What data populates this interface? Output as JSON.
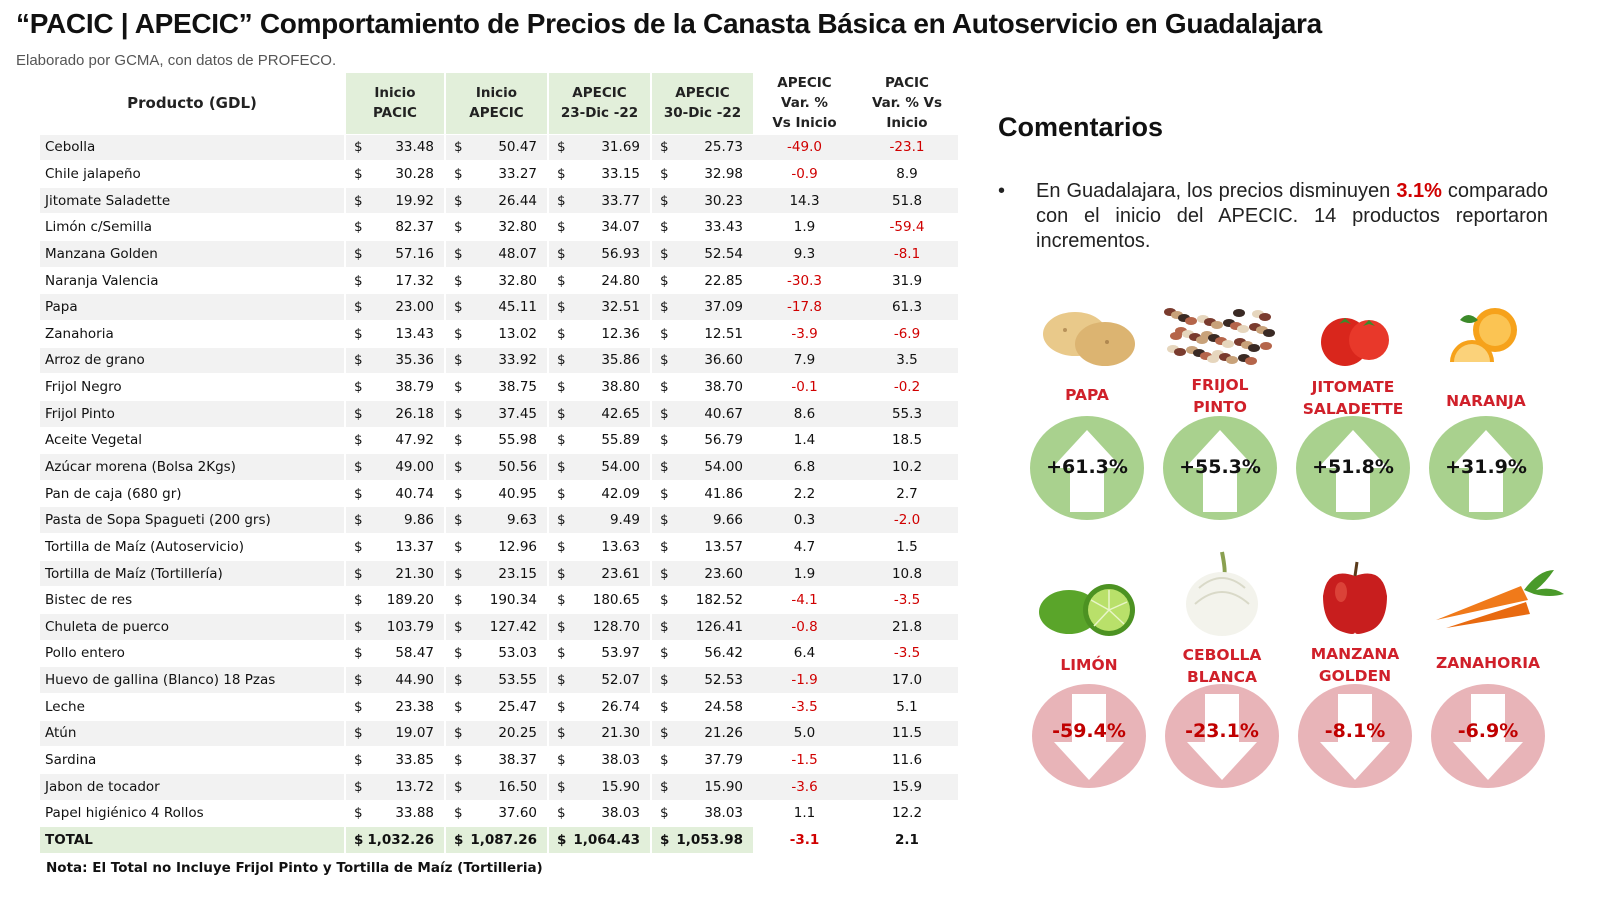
{
  "header": {
    "title": "“PACIC | APECIC” Comportamiento de Precios de la Canasta Básica en Autoservicio en Guadalajara",
    "subtitle": "Elaborado por GCMA, con datos de PROFECO."
  },
  "table": {
    "columns": {
      "product": "Producto (GDL)",
      "inicio_pacic": [
        "Inicio",
        "PACIC"
      ],
      "inicio_apecic": [
        "Inicio",
        "APECIC"
      ],
      "apecic_23": [
        "APECIC",
        "23-Dic -22"
      ],
      "apecic_30": [
        "APECIC",
        "30-Dic -22"
      ],
      "apecic_var": [
        "APECIC",
        "Var. %",
        "Vs  Inicio"
      ],
      "pacic_var": [
        "PACIC",
        "Var. % Vs",
        "Inicio"
      ]
    },
    "rows": [
      {
        "name": "Cebolla",
        "pacic": "33.48",
        "apecic": "50.47",
        "d23": "31.69",
        "d30": "25.73",
        "var_apecic": "-49.0",
        "var_pacic": "-23.1"
      },
      {
        "name": "Chile jalapeño",
        "pacic": "30.28",
        "apecic": "33.27",
        "d23": "33.15",
        "d30": "32.98",
        "var_apecic": "-0.9",
        "var_pacic": "8.9"
      },
      {
        "name": "Jitomate Saladette",
        "pacic": "19.92",
        "apecic": "26.44",
        "d23": "33.77",
        "d30": "30.23",
        "var_apecic": "14.3",
        "var_pacic": "51.8"
      },
      {
        "name": "Limón c/Semilla",
        "pacic": "82.37",
        "apecic": "32.80",
        "d23": "34.07",
        "d30": "33.43",
        "var_apecic": "1.9",
        "var_pacic": "-59.4"
      },
      {
        "name": "Manzana Golden",
        "pacic": "57.16",
        "apecic": "48.07",
        "d23": "56.93",
        "d30": "52.54",
        "var_apecic": "9.3",
        "var_pacic": "-8.1"
      },
      {
        "name": "Naranja Valencia",
        "pacic": "17.32",
        "apecic": "32.80",
        "d23": "24.80",
        "d30": "22.85",
        "var_apecic": "-30.3",
        "var_pacic": "31.9"
      },
      {
        "name": "Papa",
        "pacic": "23.00",
        "apecic": "45.11",
        "d23": "32.51",
        "d30": "37.09",
        "var_apecic": "-17.8",
        "var_pacic": "61.3"
      },
      {
        "name": "Zanahoria",
        "pacic": "13.43",
        "apecic": "13.02",
        "d23": "12.36",
        "d30": "12.51",
        "var_apecic": "-3.9",
        "var_pacic": "-6.9"
      },
      {
        "name": "Arroz de grano",
        "pacic": "35.36",
        "apecic": "33.92",
        "d23": "35.86",
        "d30": "36.60",
        "var_apecic": "7.9",
        "var_pacic": "3.5"
      },
      {
        "name": "Frijol Negro",
        "pacic": "38.79",
        "apecic": "38.75",
        "d23": "38.80",
        "d30": "38.70",
        "var_apecic": "-0.1",
        "var_pacic": "-0.2"
      },
      {
        "name": "Frijol Pinto",
        "pacic": "26.18",
        "apecic": "37.45",
        "d23": "42.65",
        "d30": "40.67",
        "var_apecic": "8.6",
        "var_pacic": "55.3"
      },
      {
        "name": "Aceite Vegetal",
        "pacic": "47.92",
        "apecic": "55.98",
        "d23": "55.89",
        "d30": "56.79",
        "var_apecic": "1.4",
        "var_pacic": "18.5"
      },
      {
        "name": "Azúcar morena (Bolsa 2Kgs)",
        "pacic": "49.00",
        "apecic": "50.56",
        "d23": "54.00",
        "d30": "54.00",
        "var_apecic": "6.8",
        "var_pacic": "10.2"
      },
      {
        "name": "Pan de caja (680 gr)",
        "pacic": "40.74",
        "apecic": "40.95",
        "d23": "42.09",
        "d30": "41.86",
        "var_apecic": "2.2",
        "var_pacic": "2.7"
      },
      {
        "name": "Pasta de Sopa Spagueti (200 grs)",
        "pacic": "9.86",
        "apecic": "9.63",
        "d23": "9.49",
        "d30": "9.66",
        "var_apecic": "0.3",
        "var_pacic": "-2.0"
      },
      {
        "name": "Tortilla de Maíz (Autoservicio)",
        "pacic": "13.37",
        "apecic": "12.96",
        "d23": "13.63",
        "d30": "13.57",
        "var_apecic": "4.7",
        "var_pacic": "1.5"
      },
      {
        "name": "Tortilla de Maíz (Tortillería)",
        "pacic": "21.30",
        "apecic": "23.15",
        "d23": "23.61",
        "d30": "23.60",
        "var_apecic": "1.9",
        "var_pacic": "10.8"
      },
      {
        "name": "Bistec de res",
        "pacic": "189.20",
        "apecic": "190.34",
        "d23": "180.65",
        "d30": "182.52",
        "var_apecic": "-4.1",
        "var_pacic": "-3.5"
      },
      {
        "name": "Chuleta de puerco",
        "pacic": "103.79",
        "apecic": "127.42",
        "d23": "128.70",
        "d30": "126.41",
        "var_apecic": "-0.8",
        "var_pacic": "21.8"
      },
      {
        "name": "Pollo entero",
        "pacic": "58.47",
        "apecic": "53.03",
        "d23": "53.97",
        "d30": "56.42",
        "var_apecic": "6.4",
        "var_pacic": "-3.5"
      },
      {
        "name": "Huevo de gallina (Blanco) 18 Pzas",
        "pacic": "44.90",
        "apecic": "53.55",
        "d23": "52.07",
        "d30": "52.53",
        "var_apecic": "-1.9",
        "var_pacic": "17.0"
      },
      {
        "name": "Leche",
        "pacic": "23.38",
        "apecic": "25.47",
        "d23": "26.74",
        "d30": "24.58",
        "var_apecic": "-3.5",
        "var_pacic": "5.1"
      },
      {
        "name": "Atún",
        "pacic": "19.07",
        "apecic": "20.25",
        "d23": "21.30",
        "d30": "21.26",
        "var_apecic": "5.0",
        "var_pacic": "11.5"
      },
      {
        "name": "Sardina",
        "pacic": "33.85",
        "apecic": "38.37",
        "d23": "38.03",
        "d30": "37.79",
        "var_apecic": "-1.5",
        "var_pacic": "11.6"
      },
      {
        "name": "Jabon de tocador",
        "pacic": "13.72",
        "apecic": "16.50",
        "d23": "15.90",
        "d30": "15.90",
        "var_apecic": "-3.6",
        "var_pacic": "15.9"
      },
      {
        "name": "Papel higiénico 4 Rollos",
        "pacic": "33.88",
        "apecic": "37.60",
        "d23": "38.03",
        "d30": "38.03",
        "var_apecic": "1.1",
        "var_pacic": "12.2"
      }
    ],
    "total": {
      "name": "TOTAL",
      "pacic": "1,032.26",
      "apecic": "1,087.26",
      "d23": "1,064.43",
      "d30": "1,053.98",
      "var_apecic": "-3.1",
      "var_pacic": "2.1"
    },
    "note": "Nota: El Total no Incluye Frijol Pinto y Tortilla de Maíz (Tortilleria)"
  },
  "comments": {
    "title": "Comentarios",
    "bullet": "•",
    "text_before": "En Guadalajara, los precios disminuyen ",
    "highlight": "3.1%",
    "text_after": " comparado con el inicio del APECIC. 14 productos reportaron incrementos."
  },
  "highlights": {
    "up_color": "#a9d18e",
    "down_color": "#e8b4b8",
    "increases": [
      {
        "label": [
          "PAPA"
        ],
        "value": "+61.3%",
        "icon": "potato-icon"
      },
      {
        "label": [
          "FRIJOL",
          "PINTO"
        ],
        "value": "+55.3%",
        "icon": "beans-icon"
      },
      {
        "label": [
          "JITOMATE",
          "SALADETTE"
        ],
        "value": "+51.8%",
        "icon": "tomato-icon"
      },
      {
        "label": [
          "NARANJA"
        ],
        "value": "+31.9%",
        "icon": "orange-icon"
      }
    ],
    "decreases": [
      {
        "label": [
          "LIMÓN"
        ],
        "value": "-59.4%",
        "icon": "lime-icon"
      },
      {
        "label": [
          "CEBOLLA",
          "BLANCA"
        ],
        "value": "-23.1%",
        "icon": "onion-icon"
      },
      {
        "label": [
          "MANZANA",
          "GOLDEN"
        ],
        "value": "-8.1%",
        "icon": "apple-icon"
      },
      {
        "label": [
          "ZANAHORIA"
        ],
        "value": "-6.9%",
        "icon": "carrot-icon"
      }
    ]
  }
}
